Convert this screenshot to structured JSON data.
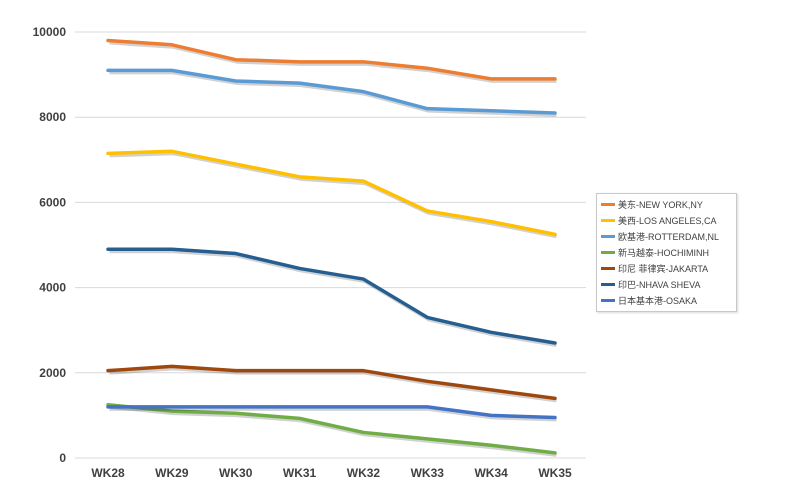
{
  "chart_data": {
    "type": "line",
    "title": "",
    "xlabel": "",
    "ylabel": "",
    "categories": [
      "WK28",
      "WK29",
      "WK30",
      "WK31",
      "WK32",
      "WK33",
      "WK34",
      "WK35"
    ],
    "ylim": [
      0,
      10000
    ],
    "yticks": [
      "0",
      "2000",
      "4000",
      "6000",
      "8000",
      "10000"
    ],
    "grid": true,
    "legend_position": "right",
    "series": [
      {
        "name": "美东-NEW YORK,NY",
        "color": "#ED7D31",
        "values": [
          9800,
          9700,
          9350,
          9300,
          9300,
          9150,
          8900,
          8900
        ]
      },
      {
        "name": "美西-LOS ANGELES,CA",
        "color": "#FFC000",
        "values": [
          7150,
          7200,
          6900,
          6600,
          6500,
          5800,
          5550,
          5250
        ]
      },
      {
        "name": "欧基港-ROTTERDAM,NL",
        "color": "#5B9BD5",
        "values": [
          9100,
          9100,
          8850,
          8800,
          8600,
          8200,
          8150,
          8100
        ]
      },
      {
        "name": "新马越泰-HOCHIMINH",
        "color": "#70AD47",
        "values": [
          1250,
          1100,
          1050,
          930,
          600,
          450,
          300,
          120
        ]
      },
      {
        "name": "印尼 菲律宾-JAKARTA",
        "color": "#9E480E",
        "values": [
          2050,
          2150,
          2050,
          2050,
          2050,
          1800,
          1600,
          1400
        ]
      },
      {
        "name": "印巴-NHAVA SHEVA",
        "color": "#255E91",
        "values": [
          4900,
          4900,
          4800,
          4450,
          4200,
          3300,
          2950,
          2700
        ]
      },
      {
        "name": "日本基本港-OSAKA",
        "color": "#4472C4",
        "values": [
          1200,
          1200,
          1200,
          1200,
          1200,
          1200,
          1000,
          950
        ]
      }
    ]
  }
}
